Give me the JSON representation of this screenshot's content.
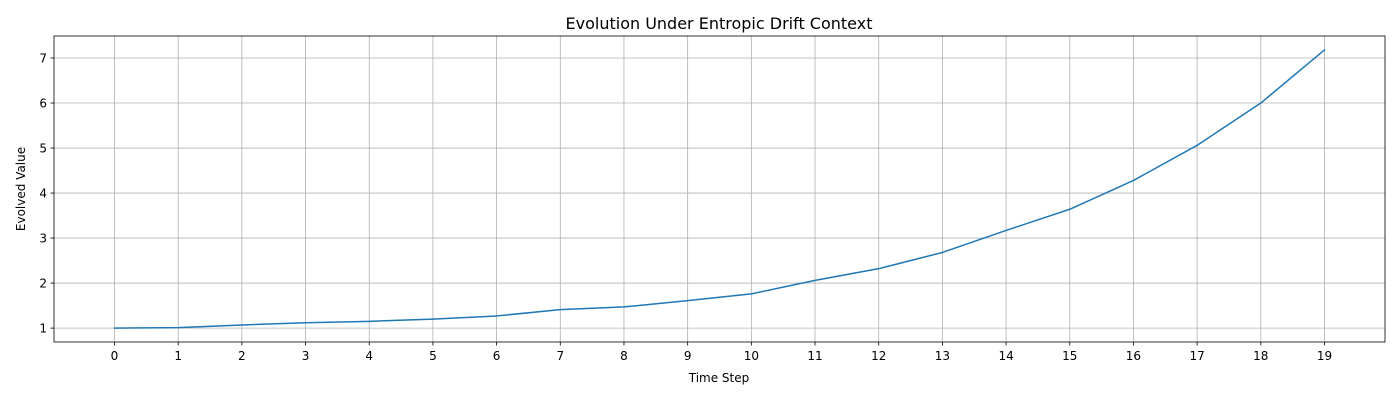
{
  "chart_data": {
    "type": "line",
    "title": "Evolution Under Entropic Drift Context",
    "xlabel": "Time Step",
    "ylabel": "Evolved Value",
    "x": [
      0,
      1,
      2,
      3,
      4,
      5,
      6,
      7,
      8,
      9,
      10,
      11,
      12,
      13,
      14,
      15,
      16,
      17,
      18,
      19
    ],
    "series": [
      {
        "values": [
          1.0,
          1.01,
          1.07,
          1.12,
          1.15,
          1.2,
          1.27,
          1.41,
          1.47,
          1.61,
          1.76,
          2.06,
          2.32,
          2.68,
          3.17,
          3.64,
          4.28,
          5.06,
          6.0,
          7.18
        ]
      }
    ],
    "xticks": [
      "0",
      "1",
      "2",
      "3",
      "4",
      "5",
      "6",
      "7",
      "8",
      "9",
      "10",
      "11",
      "12",
      "13",
      "14",
      "15",
      "16",
      "17",
      "18",
      "19"
    ],
    "yticks": [
      1,
      2,
      3,
      4,
      5,
      6,
      7
    ],
    "xlim": [
      -0.95,
      19.95
    ],
    "ylim": [
      0.691,
      7.489
    ],
    "grid": true,
    "line_color": "#1f77b4",
    "grid_color": "#b0b0b0"
  }
}
